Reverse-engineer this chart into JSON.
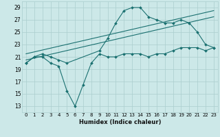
{
  "xlabel": "Humidex (Indice chaleur)",
  "background_color": "#cce8e8",
  "grid_color": "#aacece",
  "line_color": "#1a7070",
  "xlim": [
    -0.5,
    23.5
  ],
  "ylim": [
    12,
    30
  ],
  "xticks": [
    0,
    1,
    2,
    3,
    4,
    5,
    6,
    7,
    8,
    9,
    10,
    11,
    12,
    13,
    14,
    15,
    16,
    17,
    18,
    19,
    20,
    21,
    22,
    23
  ],
  "yticks": [
    13,
    15,
    17,
    19,
    21,
    23,
    25,
    27,
    29
  ],
  "line_zigzag_x": [
    0,
    1,
    2,
    3,
    4,
    5,
    6,
    7,
    8,
    9,
    10,
    11,
    12,
    13,
    14,
    15,
    16,
    17,
    18,
    19,
    20,
    21,
    22,
    23
  ],
  "line_zigzag_y": [
    20.0,
    21.0,
    21.0,
    20.0,
    19.5,
    15.5,
    13.0,
    16.5,
    20.0,
    21.5,
    21.0,
    21.0,
    21.5,
    21.5,
    21.5,
    21.0,
    21.5,
    21.5,
    22.0,
    22.5,
    22.5,
    22.5,
    22.0,
    22.5
  ],
  "line_trend1_x": [
    0,
    23
  ],
  "line_trend1_y": [
    20.5,
    27.5
  ],
  "line_trend2_x": [
    0,
    23
  ],
  "line_trend2_y": [
    21.5,
    28.5
  ],
  "line_peak_x": [
    0,
    1,
    2,
    3,
    4,
    5,
    9,
    10,
    11,
    12,
    13,
    14,
    15,
    16,
    17,
    18,
    19,
    20,
    21,
    22,
    23
  ],
  "line_peak_y": [
    20.0,
    21.0,
    21.5,
    21.0,
    20.5,
    20.0,
    22.0,
    24.0,
    26.5,
    28.5,
    29.0,
    29.0,
    27.5,
    27.0,
    26.5,
    26.5,
    27.0,
    26.5,
    25.0,
    23.0,
    22.5
  ]
}
